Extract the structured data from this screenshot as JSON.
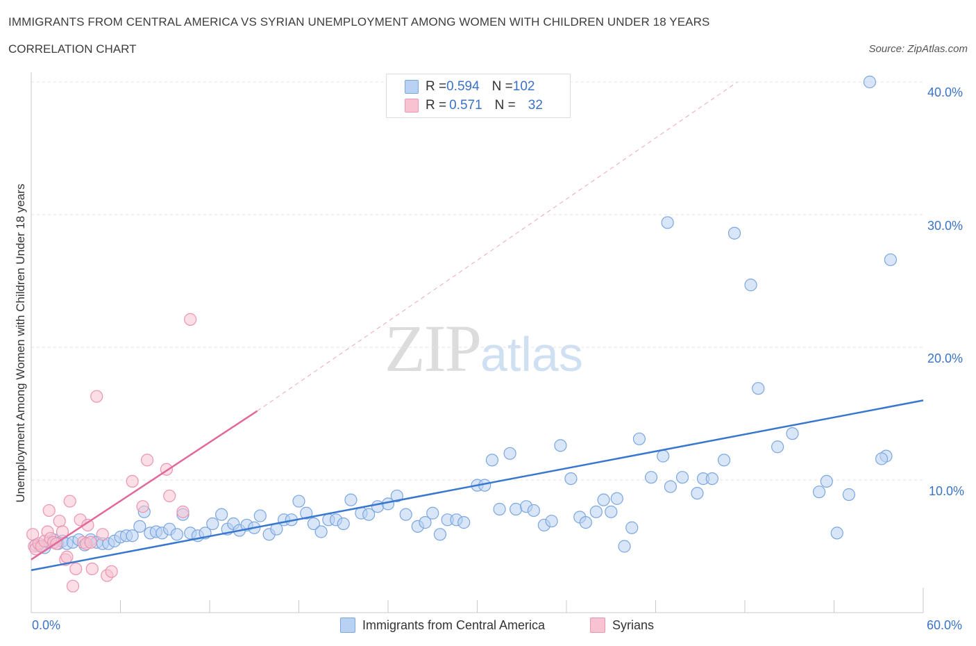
{
  "header": {
    "title": "IMMIGRANTS FROM CENTRAL AMERICA VS SYRIAN UNEMPLOYMENT AMONG WOMEN WITH CHILDREN UNDER 18 YEARS",
    "subtitle": "CORRELATION CHART",
    "source": "Source: ZipAtlas.com"
  },
  "watermark": {
    "zip": "ZIP",
    "atlas": "atlas"
  },
  "legend": {
    "rows": [
      {
        "r_label": "R = ",
        "r_value": "0.594",
        "n_label": "N = ",
        "n_value": "102"
      },
      {
        "r_label": "R = ",
        "r_value": "0.571",
        "n_label": "N = ",
        "n_value": "32"
      }
    ]
  },
  "colors": {
    "blue_fill": "#b9d1f2",
    "blue_stroke": "#7aa6e0",
    "blue_line": "#3877cf",
    "pink_fill": "#f7c3d2",
    "pink_stroke": "#ec94b0",
    "pink_line": "#e2689a",
    "grid": "#e3e3e3",
    "axis": "#c8c8c8"
  },
  "chart_data": {
    "type": "scatter",
    "title": "IMMIGRANTS FROM CENTRAL AMERICA VS SYRIAN UNEMPLOYMENT AMONG WOMEN WITH CHILDREN UNDER 18 YEARS",
    "xlabel": "",
    "ylabel": "Unemployment Among Women with Children Under 18 years",
    "xlim": [
      0,
      60
    ],
    "ylim": [
      0,
      40
    ],
    "x_tick_labels": [
      "0.0%",
      "60.0%"
    ],
    "y_tick_labels": [
      "10.0%",
      "20.0%",
      "30.0%",
      "40.0%"
    ],
    "y_ticks": [
      10,
      20,
      30,
      40
    ],
    "grid": true,
    "legend_position": "top-center",
    "series": [
      {
        "name": "Immigrants from Central America",
        "trend": {
          "x": [
            0,
            60
          ],
          "y": [
            3.2,
            16.0
          ]
        },
        "points": [
          [
            0.3,
            5.1
          ],
          [
            0.6,
            5.0
          ],
          [
            0.9,
            4.9
          ],
          [
            1.2,
            5.3
          ],
          [
            1.5,
            5.5
          ],
          [
            1.8,
            5.2
          ],
          [
            2.1,
            5.4
          ],
          [
            2.4,
            5.2
          ],
          [
            2.8,
            5.3
          ],
          [
            3.2,
            5.5
          ],
          [
            3.6,
            5.1
          ],
          [
            4.0,
            5.5
          ],
          [
            4.4,
            5.3
          ],
          [
            4.8,
            5.2
          ],
          [
            5.2,
            5.2
          ],
          [
            5.6,
            5.4
          ],
          [
            6.0,
            5.7
          ],
          [
            6.4,
            5.8
          ],
          [
            6.8,
            5.8
          ],
          [
            7.3,
            6.5
          ],
          [
            7.6,
            7.6
          ],
          [
            8.0,
            6.0
          ],
          [
            8.4,
            6.1
          ],
          [
            8.8,
            6.0
          ],
          [
            9.3,
            6.3
          ],
          [
            9.8,
            5.9
          ],
          [
            10.2,
            7.4
          ],
          [
            10.7,
            6.0
          ],
          [
            11.2,
            5.8
          ],
          [
            11.7,
            6.0
          ],
          [
            12.2,
            6.7
          ],
          [
            12.8,
            7.4
          ],
          [
            13.2,
            6.3
          ],
          [
            13.6,
            6.7
          ],
          [
            14.0,
            6.2
          ],
          [
            14.5,
            6.6
          ],
          [
            15.0,
            6.4
          ],
          [
            15.4,
            7.3
          ],
          [
            16.0,
            5.9
          ],
          [
            16.5,
            6.3
          ],
          [
            17.0,
            7.0
          ],
          [
            17.5,
            7.0
          ],
          [
            18.0,
            8.4
          ],
          [
            18.5,
            7.5
          ],
          [
            19.0,
            6.7
          ],
          [
            19.5,
            6.1
          ],
          [
            20.0,
            7.0
          ],
          [
            20.5,
            7.0
          ],
          [
            21.0,
            6.7
          ],
          [
            21.5,
            8.5
          ],
          [
            22.2,
            7.5
          ],
          [
            22.7,
            7.4
          ],
          [
            23.3,
            8.0
          ],
          [
            24.0,
            8.2
          ],
          [
            24.6,
            8.8
          ],
          [
            25.2,
            7.4
          ],
          [
            26.0,
            6.5
          ],
          [
            26.5,
            6.8
          ],
          [
            27.0,
            7.5
          ],
          [
            27.5,
            5.9
          ],
          [
            28.0,
            7.0
          ],
          [
            28.6,
            7.0
          ],
          [
            29.1,
            6.8
          ],
          [
            30.0,
            9.6
          ],
          [
            30.5,
            9.6
          ],
          [
            31.0,
            11.5
          ],
          [
            31.5,
            7.8
          ],
          [
            32.2,
            12.0
          ],
          [
            32.6,
            7.8
          ],
          [
            33.3,
            8.0
          ],
          [
            33.8,
            7.7
          ],
          [
            34.5,
            6.6
          ],
          [
            35.0,
            6.9
          ],
          [
            35.6,
            12.6
          ],
          [
            36.3,
            10.1
          ],
          [
            36.9,
            7.2
          ],
          [
            37.3,
            6.8
          ],
          [
            38.0,
            7.6
          ],
          [
            38.5,
            8.5
          ],
          [
            39.0,
            7.6
          ],
          [
            39.4,
            8.6
          ],
          [
            39.9,
            5.0
          ],
          [
            40.4,
            6.4
          ],
          [
            40.9,
            13.1
          ],
          [
            41.7,
            10.2
          ],
          [
            42.5,
            11.8
          ],
          [
            43.0,
            9.5
          ],
          [
            43.8,
            10.2
          ],
          [
            42.8,
            29.4
          ],
          [
            44.8,
            9.0
          ],
          [
            45.2,
            10.1
          ],
          [
            45.8,
            10.1
          ],
          [
            46.6,
            11.5
          ],
          [
            47.3,
            28.6
          ],
          [
            48.4,
            24.7
          ],
          [
            48.9,
            16.9
          ],
          [
            50.2,
            12.5
          ],
          [
            51.2,
            13.5
          ],
          [
            53.0,
            9.1
          ],
          [
            53.5,
            9.9
          ],
          [
            54.2,
            6.0
          ],
          [
            55.0,
            8.9
          ],
          [
            57.5,
            11.8
          ],
          [
            57.8,
            26.6
          ],
          [
            57.2,
            11.6
          ],
          [
            56.4,
            40.0
          ]
        ]
      },
      {
        "name": "Syrians",
        "trend": {
          "x": [
            0,
            15.2
          ],
          "y": [
            4.0,
            15.2
          ]
        },
        "trend_extension": {
          "x": [
            15.2,
            47.5
          ],
          "y": [
            15.2,
            40.0
          ]
        },
        "points": [
          [
            0.1,
            5.9
          ],
          [
            0.2,
            5.0
          ],
          [
            0.3,
            4.8
          ],
          [
            0.5,
            5.2
          ],
          [
            0.7,
            5.0
          ],
          [
            0.9,
            5.4
          ],
          [
            1.1,
            6.1
          ],
          [
            1.2,
            7.7
          ],
          [
            1.3,
            5.6
          ],
          [
            1.5,
            5.3
          ],
          [
            1.7,
            5.2
          ],
          [
            1.9,
            6.9
          ],
          [
            2.1,
            6.1
          ],
          [
            2.3,
            4.0
          ],
          [
            2.4,
            4.2
          ],
          [
            2.6,
            8.4
          ],
          [
            2.8,
            2.0
          ],
          [
            3.0,
            3.3
          ],
          [
            3.3,
            7.0
          ],
          [
            3.5,
            5.3
          ],
          [
            3.7,
            5.2
          ],
          [
            3.8,
            6.6
          ],
          [
            4.0,
            5.3
          ],
          [
            4.1,
            3.3
          ],
          [
            4.4,
            16.3
          ],
          [
            4.8,
            5.9
          ],
          [
            5.1,
            2.8
          ],
          [
            5.4,
            3.1
          ],
          [
            6.8,
            9.9
          ],
          [
            7.5,
            8.0
          ],
          [
            7.8,
            11.5
          ],
          [
            9.1,
            10.8
          ],
          [
            9.3,
            8.8
          ],
          [
            10.2,
            7.6
          ],
          [
            10.7,
            22.1
          ]
        ]
      }
    ]
  }
}
